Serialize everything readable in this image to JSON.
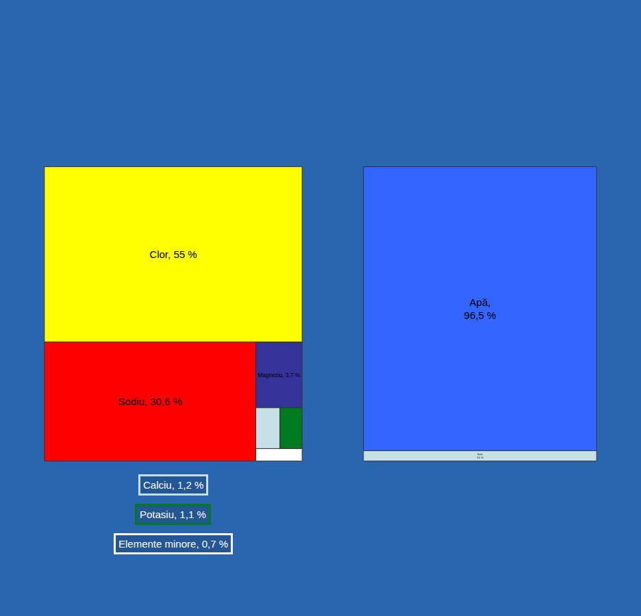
{
  "chart_data": [
    {
      "type": "treemap",
      "categories": [
        "Clor",
        "Magneziu",
        "Sodiu",
        "Calciu",
        "Potasiu",
        "Elemente minore"
      ],
      "values": [
        55,
        3.7,
        30.6,
        1.2,
        1.1,
        0.7
      ],
      "value_labels": [
        "Clor, 55 %",
        "Magneziu, 3,7 %",
        "Sodiu, 30,6 %",
        "Calciu, 1,2 %",
        "Potasiu, 1,1 %",
        "Elemente minore, 0,7 %"
      ],
      "colors": [
        "#ffff00",
        "#333399",
        "#ff0000",
        "#c5e0e6",
        "#007a1f",
        "#ffffff"
      ],
      "data_labels": true
    },
    {
      "type": "treemap",
      "categories": [
        "Apă",
        "Sare"
      ],
      "values": [
        96.5,
        3.5
      ],
      "value_labels": [
        "Apă,\n96,5 %",
        "Sare\n3,5 %"
      ],
      "colors": [
        "#3366ff",
        "#c5e0e6"
      ],
      "data_labels": true
    }
  ]
}
